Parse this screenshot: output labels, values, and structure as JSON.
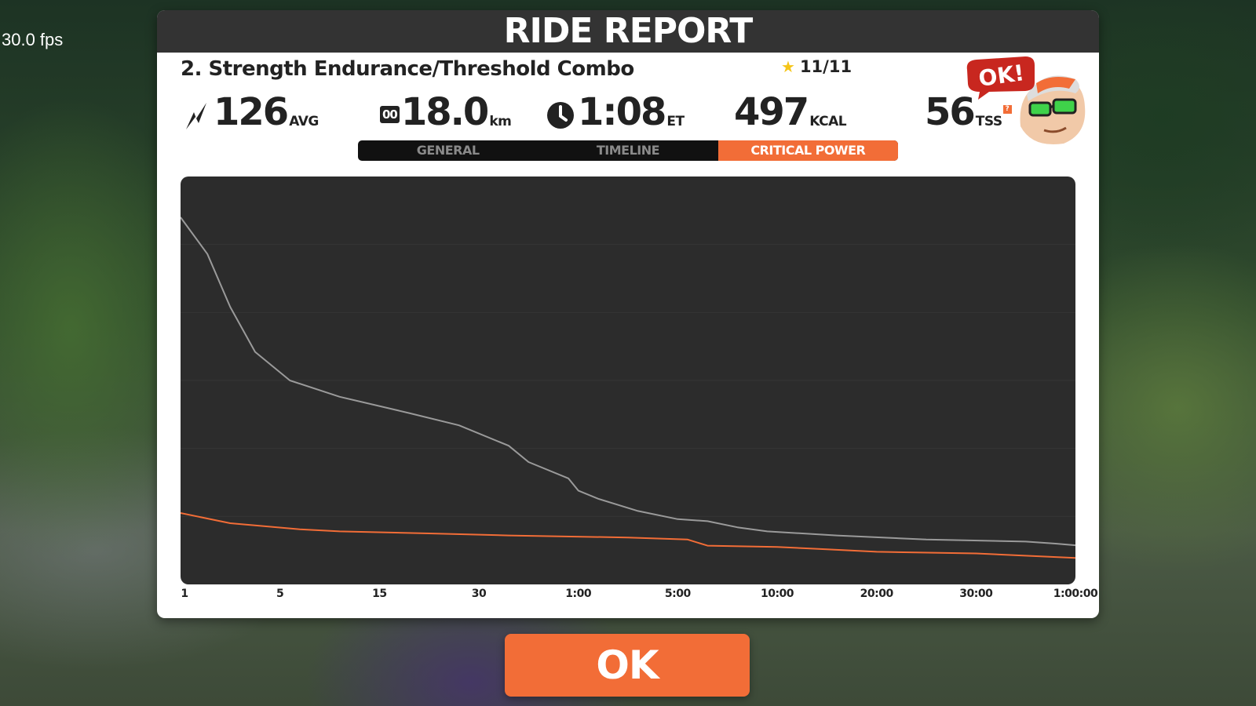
{
  "overlay": {
    "fps": "30.0 fps"
  },
  "header": {
    "title": "RIDE REPORT"
  },
  "workout": {
    "name": "2. Strength Endurance/Threshold Combo",
    "stars": "11/11"
  },
  "stats": {
    "power": {
      "value": "126",
      "unit": "AVG"
    },
    "distance": {
      "icon_text": "00",
      "value": "18.0",
      "unit": "km"
    },
    "time": {
      "value": "1:08",
      "unit": "ET"
    },
    "calories": {
      "value": "497",
      "unit": "KCAL"
    },
    "tss": {
      "value": "56",
      "unit": "TSS",
      "help": "?"
    }
  },
  "mascot": {
    "badge": "OK!"
  },
  "tabs": [
    {
      "label": "GENERAL",
      "active": false
    },
    {
      "label": "TIMELINE",
      "active": false
    },
    {
      "label": "CRITICAL POWER",
      "active": true
    }
  ],
  "icons": {
    "power": "lightning-icon",
    "distance": "odometer-icon",
    "time": "clock-icon",
    "star": "star-icon"
  },
  "colors": {
    "accent": "#f26d37",
    "header_bg": "#333333",
    "chart_bg": "#2c2c2c",
    "series_best": "#9a9a9a",
    "series_ride": "#f26d37"
  },
  "chart_data": {
    "type": "line",
    "x_scale": "log",
    "x_ticks": [
      "1",
      "5",
      "15",
      "30",
      "1:00",
      "5:00",
      "10:00",
      "20:00",
      "30:00",
      "1:00:00"
    ],
    "grid": true,
    "y_axis_labels": "none",
    "series": [
      {
        "color": "#9a9a9a",
        "points": [
          [
            0,
            90
          ],
          [
            0.27,
            81
          ],
          [
            0.5,
            68
          ],
          [
            0.75,
            57
          ],
          [
            1.1,
            50
          ],
          [
            1.6,
            46
          ],
          [
            2.3,
            42
          ],
          [
            2.8,
            39
          ],
          [
            3.3,
            34
          ],
          [
            3.5,
            30
          ],
          [
            3.9,
            26
          ],
          [
            4.0,
            23
          ],
          [
            4.2,
            21
          ],
          [
            4.6,
            18
          ],
          [
            5.0,
            16
          ],
          [
            5.3,
            15.5
          ],
          [
            5.6,
            14
          ],
          [
            5.9,
            13
          ],
          [
            6.6,
            12
          ],
          [
            7.5,
            11
          ],
          [
            8.5,
            10.5
          ],
          [
            8.8,
            10
          ],
          [
            9.0,
            9.6
          ]
        ]
      },
      {
        "color": "#f26d37",
        "points": [
          [
            0,
            17.5
          ],
          [
            0.5,
            15
          ],
          [
            1.2,
            13.5
          ],
          [
            1.6,
            13
          ],
          [
            2.5,
            12.5
          ],
          [
            3.3,
            12
          ],
          [
            4.5,
            11.5
          ],
          [
            5.1,
            11
          ],
          [
            5.3,
            9.5
          ],
          [
            6.0,
            9.2
          ],
          [
            6.5,
            8.6
          ],
          [
            7.0,
            8.0
          ],
          [
            8.0,
            7.6
          ],
          [
            9.0,
            6.5
          ]
        ]
      }
    ]
  },
  "actions": {
    "ok": "OK"
  }
}
